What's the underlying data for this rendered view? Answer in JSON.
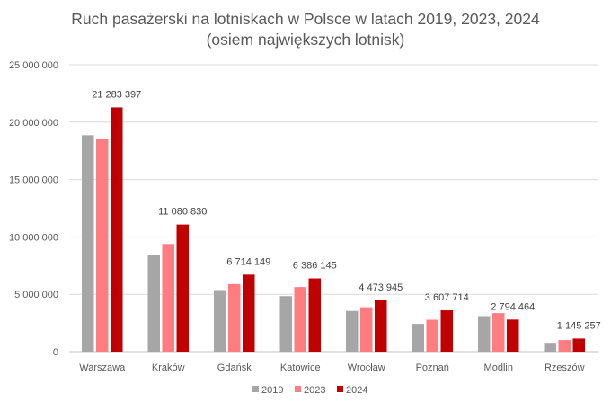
{
  "chart_data": {
    "type": "bar",
    "title_lines": [
      "Ruch pasażerski na lotniskach w Polsce w latach 2019, 2023, 2024",
      "(osiem największych lotnisk)"
    ],
    "categories": [
      "Warszawa",
      "Kraków",
      "Gdańsk",
      "Katowice",
      "Wrocław",
      "Poznań",
      "Modlin",
      "Rzeszów"
    ],
    "series": [
      {
        "name": "2019",
        "color": "#a6a6a6",
        "values": [
          18860000,
          8410000,
          5370000,
          4840000,
          3550000,
          2420000,
          3100000,
          770000
        ]
      },
      {
        "name": "2023",
        "color": "#ff7c80",
        "values": [
          18500000,
          9380000,
          5890000,
          5630000,
          3870000,
          2780000,
          3360000,
          1010000
        ]
      },
      {
        "name": "2024",
        "color": "#c00000",
        "values": [
          21283397,
          11080830,
          6714149,
          6386145,
          4473945,
          3607714,
          2794464,
          1145257
        ]
      }
    ],
    "data_labels_2024": [
      "21 283 397",
      "11 080 830",
      "6 714 149",
      "6 386 145",
      "4 473 945",
      "3 607 714",
      "2 794 464",
      "1 145 257"
    ],
    "y_ticks": [
      0,
      5000000,
      10000000,
      15000000,
      20000000,
      25000000
    ],
    "y_tick_labels": [
      "0",
      "5 000 000",
      "10 000 000",
      "15 000 000",
      "20 000 000",
      "25 000 000"
    ],
    "ylim": [
      0,
      25000000
    ],
    "grid": true,
    "legend_placement": "bottom-center"
  }
}
